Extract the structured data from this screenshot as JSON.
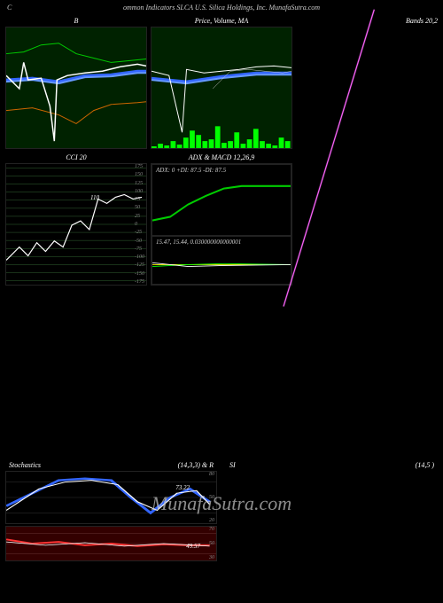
{
  "header": {
    "left": "C",
    "main": "ommon Indicators SLCA U.S. Silica Holdings, Inc. MunafaSutra.com"
  },
  "watermark": "MunafaSutra.com",
  "panels": {
    "bollinger": {
      "title_left": "B",
      "title_right": "Bands 20,2",
      "bg": "#002200",
      "lines": {
        "upper": {
          "color": "#00cc00",
          "width": 1,
          "points": [
            [
              0,
              30
            ],
            [
              20,
              28
            ],
            [
              40,
              20
            ],
            [
              60,
              18
            ],
            [
              80,
              30
            ],
            [
              100,
              35
            ],
            [
              120,
              40
            ],
            [
              140,
              38
            ],
            [
              160,
              36
            ]
          ]
        },
        "mid": {
          "color": "#3366ff",
          "width": 3,
          "points": [
            [
              0,
              60
            ],
            [
              30,
              58
            ],
            [
              60,
              62
            ],
            [
              90,
              55
            ],
            [
              120,
              54
            ],
            [
              150,
              50
            ],
            [
              160,
              50
            ]
          ]
        },
        "mid2": {
          "color": "#6699ff",
          "width": 2,
          "points": [
            [
              0,
              62
            ],
            [
              30,
              60
            ],
            [
              60,
              64
            ],
            [
              90,
              57
            ],
            [
              120,
              56
            ],
            [
              150,
              52
            ],
            [
              160,
              52
            ]
          ]
        },
        "lower": {
          "color": "#cc6600",
          "width": 1,
          "points": [
            [
              0,
              95
            ],
            [
              30,
              92
            ],
            [
              60,
              100
            ],
            [
              80,
              110
            ],
            [
              100,
              95
            ],
            [
              120,
              88
            ],
            [
              150,
              86
            ],
            [
              160,
              85
            ]
          ]
        },
        "price": {
          "color": "#ffffff",
          "width": 1.5,
          "points": [
            [
              0,
              55
            ],
            [
              15,
              70
            ],
            [
              20,
              40
            ],
            [
              25,
              60
            ],
            [
              40,
              58
            ],
            [
              50,
              90
            ],
            [
              55,
              130
            ],
            [
              58,
              60
            ],
            [
              70,
              55
            ],
            [
              90,
              52
            ],
            [
              110,
              50
            ],
            [
              130,
              45
            ],
            [
              150,
              42
            ],
            [
              160,
              44
            ]
          ]
        }
      }
    },
    "price": {
      "title": "Price, Volume, MA",
      "bg": "#002200",
      "lines": {
        "ma1": {
          "color": "#3366ff",
          "width": 3,
          "points": [
            [
              0,
              58
            ],
            [
              40,
              62
            ],
            [
              80,
              56
            ],
            [
              120,
              52
            ],
            [
              160,
              52
            ]
          ]
        },
        "ma2": {
          "color": "#6699ff",
          "width": 2,
          "points": [
            [
              0,
              60
            ],
            [
              40,
              64
            ],
            [
              80,
              58
            ],
            [
              120,
              54
            ],
            [
              160,
              54
            ]
          ]
        },
        "price": {
          "color": "#ffffff",
          "width": 1,
          "points": [
            [
              0,
              50
            ],
            [
              20,
              55
            ],
            [
              35,
              120
            ],
            [
              40,
              48
            ],
            [
              60,
              52
            ],
            [
              80,
              50
            ],
            [
              100,
              48
            ],
            [
              120,
              45
            ],
            [
              140,
              44
            ],
            [
              160,
              46
            ]
          ]
        },
        "thin": {
          "color": "#cccccc",
          "width": 0.5,
          "points": [
            [
              70,
              70
            ],
            [
              90,
              50
            ],
            [
              110,
              48
            ],
            [
              130,
              50
            ],
            [
              150,
              52
            ],
            [
              160,
              50
            ]
          ]
        }
      },
      "volume": {
        "color": "#00ff00",
        "bars": [
          2,
          5,
          3,
          8,
          4,
          12,
          20,
          15,
          8,
          10,
          25,
          6,
          8,
          18,
          5,
          10,
          22,
          8,
          5,
          3,
          12,
          8
        ]
      }
    },
    "cci": {
      "title": "CCI 20",
      "value_text": "110",
      "value_pos": [
        95,
        45
      ],
      "line": {
        "color": "#ffffff",
        "width": 1.2,
        "points": [
          [
            0,
            110
          ],
          [
            15,
            95
          ],
          [
            25,
            105
          ],
          [
            35,
            90
          ],
          [
            45,
            100
          ],
          [
            55,
            88
          ],
          [
            65,
            95
          ],
          [
            75,
            70
          ],
          [
            85,
            65
          ],
          [
            95,
            75
          ],
          [
            105,
            40
          ],
          [
            115,
            45
          ],
          [
            125,
            38
          ],
          [
            135,
            35
          ],
          [
            145,
            40
          ],
          [
            155,
            38
          ]
        ]
      },
      "grid_color": "#336633",
      "ticks": [
        "175",
        "150",
        "125",
        "100",
        "75",
        "50",
        "25",
        "0",
        "-25",
        "-50",
        "-75",
        "-100",
        "-125",
        "-150",
        "-175"
      ]
    },
    "adx": {
      "title": "ADX & MACD 12,26,9",
      "top": {
        "label": "ADX: 0  +DI: 87.5 -DI: 87.5",
        "line": {
          "color": "#00cc00",
          "width": 1.5,
          "points": [
            [
              0,
              38
            ],
            [
              20,
              35
            ],
            [
              40,
              25
            ],
            [
              60,
              18
            ],
            [
              80,
              12
            ],
            [
              100,
              10
            ],
            [
              120,
              10
            ],
            [
              140,
              10
            ],
            [
              155,
              10
            ]
          ]
        }
      },
      "bot": {
        "label": "15.47, 15.44, 0.030000000000001",
        "lines": [
          {
            "color": "#ffff00",
            "width": 0.8,
            "points": [
              [
                0,
                20
              ],
              [
                155,
                20
              ]
            ]
          },
          {
            "color": "#00ff00",
            "width": 0.8,
            "points": [
              [
                0,
                22
              ],
              [
                40,
                20
              ],
              [
                80,
                19
              ],
              [
                155,
                20
              ]
            ]
          },
          {
            "color": "#ffffff",
            "width": 0.8,
            "points": [
              [
                0,
                18
              ],
              [
                40,
                22
              ],
              [
                80,
                21
              ],
              [
                155,
                20
              ]
            ]
          }
        ]
      }
    },
    "stoch": {
      "title_left": "Stochastics",
      "title_mid": "(14,3,3) & R",
      "title_right_a": "SI",
      "title_right_b": "(14,5                    )",
      "top": {
        "ticks": [
          "80",
          "50",
          "20"
        ],
        "val": "73.22",
        "val_pos": [
          115,
          18
        ],
        "lines": [
          {
            "color": "#3366ff",
            "width": 2.5,
            "points": [
              [
                0,
                40
              ],
              [
                20,
                25
              ],
              [
                40,
                10
              ],
              [
                60,
                8
              ],
              [
                80,
                10
              ],
              [
                95,
                30
              ],
              [
                110,
                48
              ],
              [
                125,
                30
              ],
              [
                140,
                20
              ],
              [
                155,
                35
              ]
            ]
          },
          {
            "color": "#ffffff",
            "width": 1,
            "points": [
              [
                0,
                45
              ],
              [
                25,
                20
              ],
              [
                45,
                12
              ],
              [
                65,
                10
              ],
              [
                85,
                15
              ],
              [
                100,
                35
              ],
              [
                115,
                45
              ],
              [
                130,
                25
              ],
              [
                145,
                22
              ],
              [
                155,
                38
              ]
            ]
          }
        ]
      },
      "bot": {
        "ticks": [
          "70",
          "50",
          "30"
        ],
        "val": "49.57",
        "val_pos": [
          130,
          20
        ],
        "lines": [
          {
            "color": "#ff3333",
            "width": 2,
            "points": [
              [
                0,
                15
              ],
              [
                20,
                20
              ],
              [
                40,
                18
              ],
              [
                60,
                22
              ],
              [
                80,
                20
              ],
              [
                100,
                23
              ],
              [
                120,
                21
              ],
              [
                140,
                22
              ],
              [
                155,
                22
              ]
            ]
          },
          {
            "color": "#ffffff",
            "width": 0.8,
            "points": [
              [
                0,
                18
              ],
              [
                30,
                22
              ],
              [
                60,
                19
              ],
              [
                90,
                23
              ],
              [
                120,
                20
              ],
              [
                155,
                23
              ]
            ]
          }
        ]
      }
    }
  },
  "colors": {
    "bg": "#000000",
    "muted": "#888888",
    "pink": "#ff66ff"
  }
}
